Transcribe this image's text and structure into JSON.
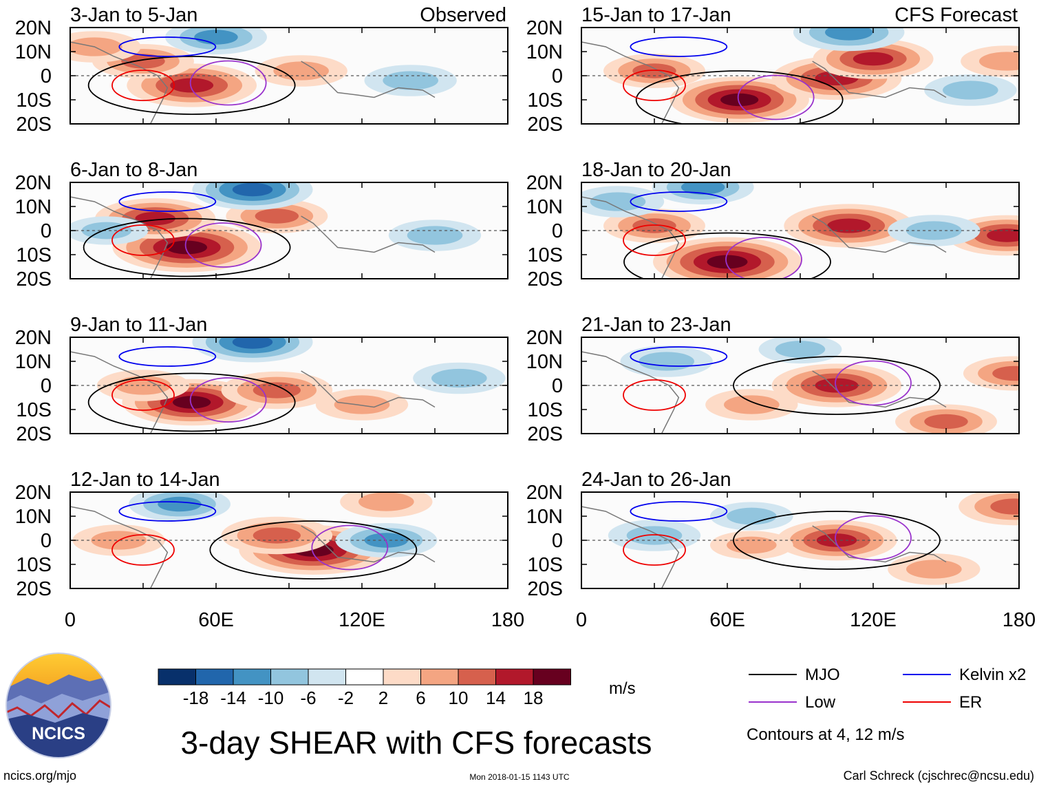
{
  "chart_data": {
    "type": "heatmap",
    "title": "3-day SHEAR with CFS forecasts",
    "observed_label": "Observed",
    "forecast_label": "CFS Forecast",
    "lat_ticks": [
      "20N",
      "10N",
      "0",
      "10S",
      "20S"
    ],
    "lon_ticks": [
      "0",
      "60E",
      "120E",
      "180"
    ],
    "lat_range": [
      -20,
      20
    ],
    "lon_range": [
      0,
      180
    ],
    "units": "m/s",
    "colorbar_ticks": [
      "-18",
      "-14",
      "-10",
      "-6",
      "-2",
      "2",
      "6",
      "10",
      "14",
      "18"
    ],
    "colorbar_colors": [
      "#08306b",
      "#2166ac",
      "#4393c3",
      "#92c5de",
      "#d1e5f0",
      "#ffffff",
      "#fddbc7",
      "#f4a582",
      "#d6604d",
      "#b2182b",
      "#67001f"
    ],
    "panels": [
      {
        "label": "3-Jan to 5-Jan",
        "kind": "observed",
        "anomalies": [
          {
            "lon": 50,
            "lat": -4,
            "value": 16
          },
          {
            "lon": 30,
            "lat": 6,
            "value": 10
          },
          {
            "lon": 95,
            "lat": 2,
            "value": 8
          },
          {
            "lon": 140,
            "lat": -2,
            "value": -8
          },
          {
            "lon": 60,
            "lat": 16,
            "value": -10
          },
          {
            "lon": 10,
            "lat": 12,
            "value": 8
          }
        ]
      },
      {
        "label": "6-Jan to 8-Jan",
        "kind": "observed",
        "anomalies": [
          {
            "lon": 48,
            "lat": -7,
            "value": 20
          },
          {
            "lon": 35,
            "lat": 5,
            "value": 14
          },
          {
            "lon": 85,
            "lat": 6,
            "value": 10
          },
          {
            "lon": 75,
            "lat": 17,
            "value": -14
          },
          {
            "lon": 150,
            "lat": -2,
            "value": -8
          },
          {
            "lon": 15,
            "lat": 0,
            "value": -6
          }
        ]
      },
      {
        "label": "9-Jan to 11-Jan",
        "kind": "observed",
        "anomalies": [
          {
            "lon": 50,
            "lat": -7,
            "value": 18
          },
          {
            "lon": 85,
            "lat": -2,
            "value": 12
          },
          {
            "lon": 30,
            "lat": 0,
            "value": 8
          },
          {
            "lon": 75,
            "lat": 18,
            "value": -14
          },
          {
            "lon": 160,
            "lat": 3,
            "value": -8
          },
          {
            "lon": 120,
            "lat": -8,
            "value": 8
          }
        ]
      },
      {
        "label": "12-Jan to 14-Jan",
        "kind": "observed",
        "anomalies": [
          {
            "lon": 100,
            "lat": -4,
            "value": 20
          },
          {
            "lon": 85,
            "lat": 2,
            "value": 12
          },
          {
            "lon": 20,
            "lat": 0,
            "value": 8
          },
          {
            "lon": 130,
            "lat": 0,
            "value": -10
          },
          {
            "lon": 45,
            "lat": 15,
            "value": -10
          },
          {
            "lon": 130,
            "lat": 16,
            "value": 8
          }
        ]
      },
      {
        "label": "15-Jan to 17-Jan",
        "kind": "forecast",
        "anomalies": [
          {
            "lon": 65,
            "lat": -10,
            "value": 18
          },
          {
            "lon": 105,
            "lat": -1,
            "value": 16
          },
          {
            "lon": 120,
            "lat": 7,
            "value": 14
          },
          {
            "lon": 30,
            "lat": 2,
            "value": 10
          },
          {
            "lon": 160,
            "lat": -6,
            "value": -8
          },
          {
            "lon": 110,
            "lat": 18,
            "value": -12
          },
          {
            "lon": 175,
            "lat": 6,
            "value": 8
          }
        ]
      },
      {
        "label": "18-Jan to 20-Jan",
        "kind": "forecast",
        "anomalies": [
          {
            "lon": 60,
            "lat": -13,
            "value": 20
          },
          {
            "lon": 110,
            "lat": 2,
            "value": 16
          },
          {
            "lon": 30,
            "lat": 2,
            "value": 10
          },
          {
            "lon": 175,
            "lat": -2,
            "value": 14
          },
          {
            "lon": 145,
            "lat": 0,
            "value": -8
          },
          {
            "lon": 15,
            "lat": 12,
            "value": -8
          },
          {
            "lon": 50,
            "lat": 18,
            "value": -10
          }
        ]
      },
      {
        "label": "21-Jan to 23-Jan",
        "kind": "forecast",
        "anomalies": [
          {
            "lon": 105,
            "lat": 0,
            "value": 16
          },
          {
            "lon": 70,
            "lat": -8,
            "value": 8
          },
          {
            "lon": 150,
            "lat": -15,
            "value": 10
          },
          {
            "lon": 35,
            "lat": 10,
            "value": -8
          },
          {
            "lon": 90,
            "lat": 15,
            "value": -6
          },
          {
            "lon": 178,
            "lat": 5,
            "value": 10
          }
        ]
      },
      {
        "label": "24-Jan to 26-Jan",
        "kind": "forecast",
        "anomalies": [
          {
            "lon": 105,
            "lat": 0,
            "value": 14
          },
          {
            "lon": 70,
            "lat": -2,
            "value": 6
          },
          {
            "lon": 145,
            "lat": -12,
            "value": 8
          },
          {
            "lon": 178,
            "lat": 14,
            "value": 12
          },
          {
            "lon": 30,
            "lat": 2,
            "value": -8
          },
          {
            "lon": 70,
            "lat": 10,
            "value": -6
          }
        ]
      }
    ],
    "legend": [
      {
        "name": "MJO",
        "color": "#000000"
      },
      {
        "name": "Kelvin x2",
        "color": "#0000ee"
      },
      {
        "name": "Low",
        "color": "#9932cc"
      },
      {
        "name": "ER",
        "color": "#ee0000"
      }
    ],
    "contour_note": "Contours at 4, 12 m/s"
  },
  "logo_text": "NCICS",
  "footer": {
    "site": "ncics.org/mjo",
    "timestamp": "Mon 2018-01-15 1143 UTC",
    "author": "Carl Schreck (cjschrec@ncsu.edu)"
  }
}
